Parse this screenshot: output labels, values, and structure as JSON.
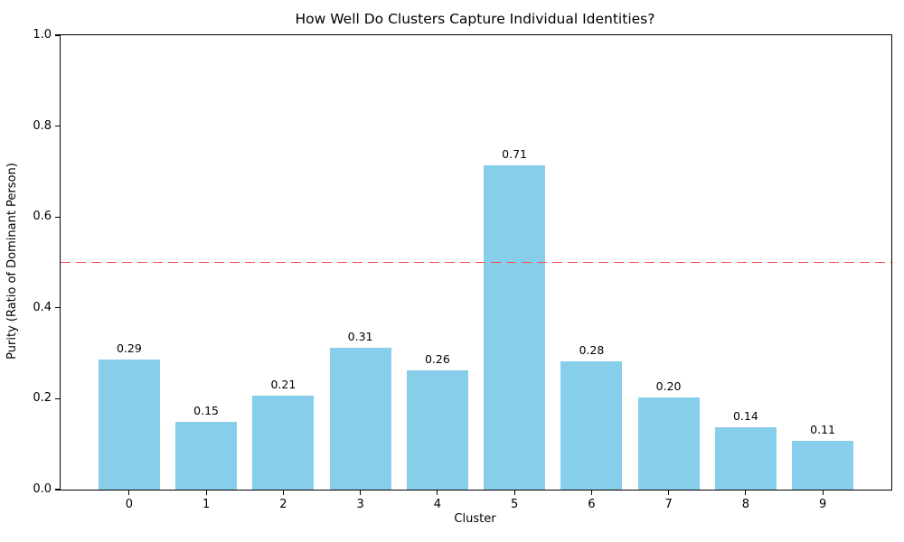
{
  "figure": {
    "title": "How Well Do Clusters Capture Individual Identities?",
    "background_color": "#ffffff",
    "text_color": "#000000"
  },
  "chart_data": {
    "type": "bar",
    "title": "How Well Do Clusters Capture Individual Identities?",
    "xlabel": "Cluster",
    "ylabel": "Purity (Ratio of Dominant Person)",
    "categories": [
      "0",
      "1",
      "2",
      "3",
      "4",
      "5",
      "6",
      "7",
      "8",
      "9"
    ],
    "values": [
      0.286,
      0.149,
      0.207,
      0.313,
      0.262,
      0.714,
      0.282,
      0.203,
      0.137,
      0.107
    ],
    "bar_labels": [
      "0.29",
      "0.15",
      "0.21",
      "0.31",
      "0.26",
      "0.71",
      "0.28",
      "0.20",
      "0.14",
      "0.11"
    ],
    "bar_color": "#87CEEB",
    "threshold_line": {
      "value": 0.5,
      "color": "#ff4d4d",
      "style": "dashed"
    },
    "ylim": [
      0.0,
      1.0
    ],
    "xlim": [
      -0.89,
      9.89
    ],
    "yticks": [
      0.0,
      0.2,
      0.4,
      0.6,
      0.8,
      1.0
    ],
    "ytick_labels": [
      "0.0",
      "0.2",
      "0.4",
      "0.6",
      "0.8",
      "1.0"
    ],
    "bar_width_units": 0.8,
    "grid": false,
    "legend": "none"
  }
}
